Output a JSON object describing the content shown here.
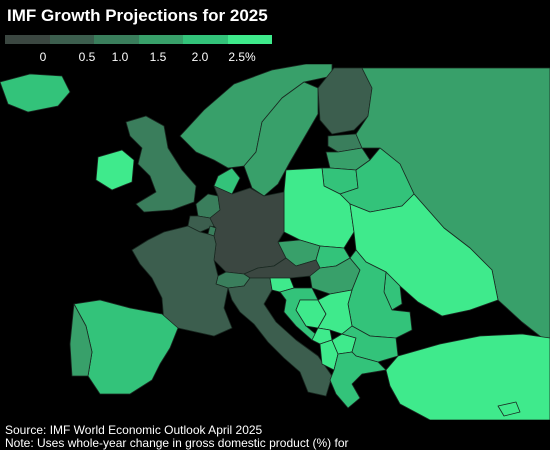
{
  "title": "IMF Growth Projections for 2025",
  "legend": {
    "bins": [
      {
        "color": "#3b4741"
      },
      {
        "color": "#3c5e4e"
      },
      {
        "color": "#3a7e5c"
      },
      {
        "color": "#38a06a"
      },
      {
        "color": "#33c37a"
      },
      {
        "color": "#3fea8c"
      }
    ],
    "ticks": [
      "0",
      "0.5",
      "1.0",
      "1.5",
      "2.0",
      "2.5%"
    ]
  },
  "colors": {
    "sea": "#000000",
    "border": "#1a2a22",
    "non_data": "#111111"
  },
  "regions": [
    {
      "name": "iceland",
      "bin": 4
    },
    {
      "name": "ireland",
      "bin": 5
    },
    {
      "name": "united-kingdom",
      "bin": 2
    },
    {
      "name": "norway",
      "bin": 3
    },
    {
      "name": "sweden",
      "bin": 3
    },
    {
      "name": "finland",
      "bin": 1
    },
    {
      "name": "denmark",
      "bin": 4
    },
    {
      "name": "estonia",
      "bin": 2
    },
    {
      "name": "latvia",
      "bin": 3
    },
    {
      "name": "lithuania",
      "bin": 4
    },
    {
      "name": "russia",
      "bin": 3
    },
    {
      "name": "belarus",
      "bin": 4
    },
    {
      "name": "poland",
      "bin": 5
    },
    {
      "name": "ukraine",
      "bin": 5
    },
    {
      "name": "netherlands",
      "bin": 2
    },
    {
      "name": "belgium",
      "bin": 1
    },
    {
      "name": "luxembourg",
      "bin": 2
    },
    {
      "name": "germany",
      "bin": 0
    },
    {
      "name": "czechia",
      "bin": 3
    },
    {
      "name": "slovakia",
      "bin": 4
    },
    {
      "name": "austria",
      "bin": 0
    },
    {
      "name": "switzerland",
      "bin": 2
    },
    {
      "name": "hungary",
      "bin": 3
    },
    {
      "name": "moldova",
      "bin": 4
    },
    {
      "name": "romania",
      "bin": 4
    },
    {
      "name": "france",
      "bin": 1
    },
    {
      "name": "italy",
      "bin": 1
    },
    {
      "name": "slovenia",
      "bin": 5
    },
    {
      "name": "croatia",
      "bin": 4
    },
    {
      "name": "bosnia",
      "bin": 5
    },
    {
      "name": "serbia",
      "bin": 5
    },
    {
      "name": "montenegro",
      "bin": 5
    },
    {
      "name": "albania",
      "bin": 5
    },
    {
      "name": "north-macedonia",
      "bin": 5
    },
    {
      "name": "bulgaria",
      "bin": 4
    },
    {
      "name": "greece",
      "bin": 4
    },
    {
      "name": "turkey",
      "bin": 5
    },
    {
      "name": "spain",
      "bin": 4
    },
    {
      "name": "portugal",
      "bin": 3
    },
    {
      "name": "cyprus",
      "bin": 5
    }
  ],
  "source": "Source: IMF World Economic Outlook April 2025",
  "note": "Note: Uses whole-year change in gross domestic product (%) for"
}
